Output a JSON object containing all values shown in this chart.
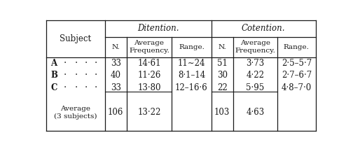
{
  "background_color": "#ffffff",
  "line_color": "#1a1a1a",
  "header1": "Ditention.",
  "header2": "Cotention.",
  "col_subject": "Subject",
  "subheaders": [
    "N.",
    "Average\nFrequency.",
    "Range.",
    "N.",
    "Average\nFrequency.",
    "Range."
  ],
  "rows": [
    [
      "A",
      "33",
      "14·61",
      "11∼24",
      "51",
      "3·73",
      "2·5–5·7"
    ],
    [
      "B",
      "40",
      "11·26",
      "8·1–14",
      "30",
      "4·22",
      "2·7–6·7"
    ],
    [
      "C",
      "33",
      "13·80",
      "12–16·6",
      "22",
      "5·95",
      "4·8–7·0"
    ]
  ],
  "avg_label": "Average\n(3 subjects)",
  "avg_row": [
    "106",
    "13·22",
    "",
    "103",
    "4·63",
    ""
  ],
  "font_family": "serif"
}
